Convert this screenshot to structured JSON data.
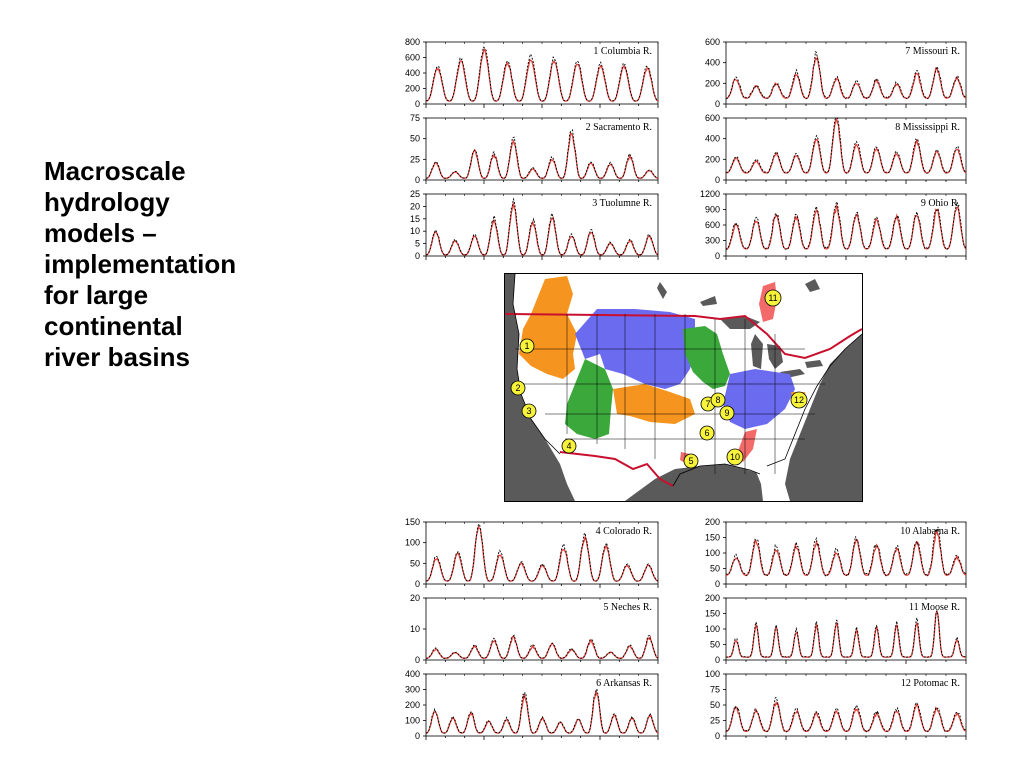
{
  "slide": {
    "title_lines": [
      "Macroscale",
      "hydrology",
      "models –",
      "implementation",
      "for large",
      "continental",
      "river basins"
    ]
  },
  "colors": {
    "observed_line": "#000000",
    "simulated_line": "#e8413a",
    "basin_orange": "#f5941e",
    "basin_blue": "#6b6bf0",
    "basin_green": "#3aa83a",
    "basin_red": "#f26a6a",
    "ocean": "#5a5a5a",
    "label_fill": "#f7f23a"
  },
  "map": {
    "markers": [
      "1",
      "2",
      "3",
      "4",
      "5",
      "6",
      "7",
      "8",
      "9",
      "10",
      "11",
      "12"
    ]
  },
  "chart_data": [
    {
      "type": "line",
      "title": "1 Columbia R.",
      "yticks": [
        "800",
        "600",
        "400",
        "200",
        "0"
      ],
      "ylim": [
        0,
        800
      ],
      "amp": [
        450,
        550,
        700,
        520,
        580,
        560,
        520,
        480,
        470,
        450
      ],
      "noise": 0.15,
      "base": 0.05,
      "seed": 1
    },
    {
      "type": "line",
      "title": "2 Sacramento R.",
      "yticks": [
        "75",
        "50",
        "25",
        "0"
      ],
      "ylim": [
        0,
        75
      ],
      "amp": [
        20,
        8,
        35,
        30,
        48,
        12,
        25,
        58,
        20,
        18,
        28,
        10
      ],
      "noise": 0.25,
      "base": 0.03,
      "seed": 2
    },
    {
      "type": "line",
      "title": "3 Tuolumne R.",
      "yticks": [
        "25",
        "20",
        "15",
        "10",
        "5",
        "0"
      ],
      "ylim": [
        0,
        25
      ],
      "amp": [
        10,
        6,
        8,
        15,
        22,
        14,
        16,
        8,
        10,
        5,
        6,
        8
      ],
      "noise": 0.25,
      "base": 0.02,
      "seed": 3
    },
    {
      "type": "line",
      "title": "4 Colorado R.",
      "yticks": [
        "150",
        "100",
        "50",
        "0"
      ],
      "ylim": [
        0,
        150
      ],
      "amp": [
        60,
        70,
        140,
        70,
        45,
        40,
        85,
        110,
        90,
        40,
        40
      ],
      "noise": 0.2,
      "base": 0.05,
      "seed": 4
    },
    {
      "type": "line",
      "title": "5 Neches R.",
      "yticks": [
        "20",
        "10",
        "0"
      ],
      "ylim": [
        0,
        20
      ],
      "amp": [
        3,
        2,
        4,
        6,
        7,
        4,
        5,
        3,
        6,
        2,
        4,
        7
      ],
      "noise": 0.35,
      "base": 0.03,
      "seed": 5
    },
    {
      "type": "line",
      "title": "6 Arkansas R.",
      "yticks": [
        "400",
        "300",
        "200",
        "100",
        "0"
      ],
      "ylim": [
        0,
        400
      ],
      "amp": [
        150,
        100,
        140,
        80,
        90,
        260,
        100,
        70,
        90,
        280,
        120,
        100,
        120
      ],
      "noise": 0.3,
      "base": 0.05,
      "seed": 6
    },
    {
      "type": "line",
      "title": "7 Missouri R.",
      "yticks": [
        "600",
        "400",
        "200",
        "0"
      ],
      "ylim": [
        0,
        600
      ],
      "amp": [
        200,
        120,
        150,
        250,
        420,
        200,
        160,
        180,
        140,
        250,
        300,
        200
      ],
      "noise": 0.35,
      "base": 0.1,
      "seed": 7
    },
    {
      "type": "line",
      "title": "8 Mississippi R.",
      "yticks": [
        "600",
        "400",
        "200",
        "0"
      ],
      "ylim": [
        0,
        600
      ],
      "amp": [
        150,
        120,
        200,
        180,
        350,
        550,
        300,
        250,
        200,
        320,
        220,
        250
      ],
      "noise": 0.2,
      "base": 0.12,
      "seed": 8
    },
    {
      "type": "line",
      "title": "9 Ohio R.",
      "yticks": [
        "1200",
        "900",
        "600",
        "300",
        "0"
      ],
      "ylim": [
        0,
        1200
      ],
      "amp": [
        500,
        600,
        700,
        650,
        800,
        850,
        700,
        600,
        650,
        700,
        800,
        850
      ],
      "noise": 0.3,
      "base": 0.12,
      "seed": 9
    },
    {
      "type": "line",
      "title": "10 Alabama R.",
      "yticks": [
        "200",
        "150",
        "100",
        "50",
        "0"
      ],
      "ylim": [
        0,
        200
      ],
      "amp": [
        60,
        120,
        90,
        100,
        110,
        80,
        120,
        100,
        90,
        110,
        150,
        60
      ],
      "noise": 0.3,
      "base": 0.15,
      "seed": 10
    },
    {
      "type": "line",
      "title": "11 Moose R.",
      "yticks": [
        "200",
        "150",
        "100",
        "50",
        "0"
      ],
      "ylim": [
        0,
        200
      ],
      "amp": [
        60,
        110,
        100,
        90,
        110,
        120,
        90,
        100,
        110,
        120,
        160,
        60
      ],
      "noise": 0.25,
      "base": 0.05,
      "seed": 11,
      "spiky": true
    },
    {
      "type": "line",
      "title": "12 Potomac R.",
      "yticks": [
        "100",
        "75",
        "50",
        "25",
        "0"
      ],
      "ylim": [
        0,
        100
      ],
      "amp": [
        40,
        35,
        50,
        35,
        30,
        35,
        40,
        30,
        35,
        45,
        40,
        30
      ],
      "noise": 0.35,
      "base": 0.08,
      "seed": 12
    }
  ]
}
